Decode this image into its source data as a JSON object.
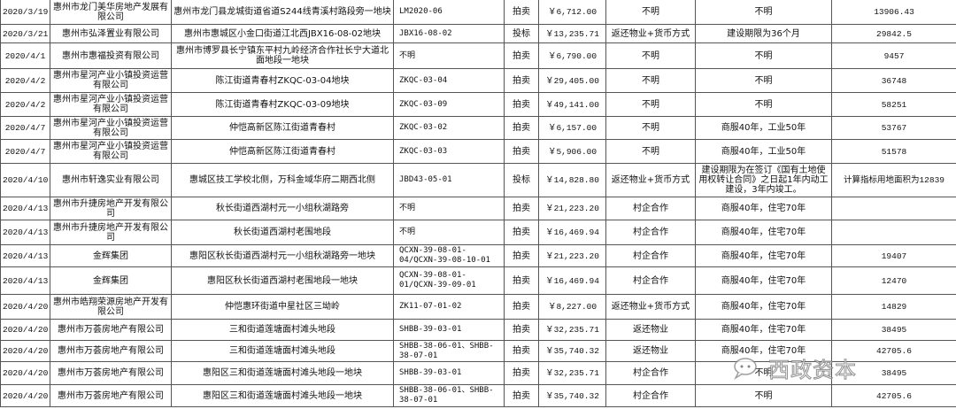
{
  "rows": [
    {
      "date": "2020/3/19",
      "company": "惠州市龙门美华房地产发展有限公司",
      "location": "惠州市龙门县龙城街道省道S244线青溪村路段旁一地块",
      "code": "LM2020-06",
      "method": "拍卖",
      "price": "￥6,712.00",
      "condition": "不明",
      "remarks": "不明",
      "area": "13906.43"
    },
    {
      "date": "2020/3/21",
      "company": "惠州市弘泽置业有限公司",
      "location": "惠州市惠城区小金口街道江北西JBX16-08-02地块",
      "code": "JBX16-08-02",
      "method": "投标",
      "price": "￥13,235.71",
      "condition": "返还物业+货币方式",
      "remarks": "建设期限为36个月",
      "area": "29842.5"
    },
    {
      "date": "2020/4/1",
      "company": "惠州市惠福投资有限公司",
      "location": "惠州市博罗县长宁镇东平村九岭经济合作社长宁大道北面地段一地块",
      "code": "不明",
      "method": "拍卖",
      "price": "￥6,790.00",
      "condition": "不明",
      "remarks": "不明",
      "area": "9457"
    },
    {
      "date": "2020/4/2",
      "company": "惠州市星河产业小镇投资运营有限公司",
      "location": "陈江街道青春村ZKQC-03-04地块",
      "code": "ZKQC-03-04",
      "method": "拍卖",
      "price": "￥29,405.00",
      "condition": "不明",
      "remarks": "不明",
      "area": "36748"
    },
    {
      "date": "2020/4/2",
      "company": "惠州市星河产业小镇投资运营有限公司",
      "location": "陈江街道青春村ZKQC-03-09地块",
      "code": "ZKQC-03-09",
      "method": "拍卖",
      "price": "￥49,141.00",
      "condition": "不明",
      "remarks": "不明",
      "area": "58251"
    },
    {
      "date": "2020/4/7",
      "company": "惠州市星河产业小镇投资运营有限公司",
      "location": "仲恺高新区陈江街道青春村",
      "code": "ZKQC-03-02",
      "method": "拍卖",
      "price": "￥6,157.00",
      "condition": "不明",
      "remarks": "商服40年，工业50年",
      "area": "53767"
    },
    {
      "date": "2020/4/7",
      "company": "惠州市星河产业小镇投资运营有限公司",
      "location": "仲恺高新区陈江街道青春村",
      "code": "ZKQC-03-03",
      "method": "拍卖",
      "price": "￥5,906.00",
      "condition": "不明",
      "remarks": "商服40年，工业50年",
      "area": "51578"
    },
    {
      "date": "2020/4/10",
      "company": "惠州市轩逸实业有限公司",
      "location": "惠城区技工学校北侧，万科金域华府二期西北侧",
      "code": "JBD43-05-01",
      "method": "投标",
      "price": "￥14,828.80",
      "condition": "返还物业+货币方式",
      "remarks": "建设期限为在签订《国有土地使用权转让合同》之日起1年内动工建设，3年内竣工。",
      "area": "计算指标用地面积为12839"
    },
    {
      "date": "2020/4/13",
      "company": "惠州市升捷房地产开发有限公司",
      "location": "秋长街道西湖村元一小组秋湖路旁",
      "code": "不明",
      "method": "拍卖",
      "price": "￥21,223.20",
      "condition": "村企合作",
      "remarks": "商服40年，住宅70年",
      "area": ""
    },
    {
      "date": "2020/4/13",
      "company": "惠州市升捷房地产开发有限公司",
      "location": "秋长街道西湖村老围地段",
      "code": "不明",
      "method": "拍卖",
      "price": "￥16,469.94",
      "condition": "村企合作",
      "remarks": "商服40年，住宅70年",
      "area": ""
    },
    {
      "date": "2020/4/13",
      "company": "金辉集团",
      "location": "惠阳区秋长街道西湖村元一小组秋湖路旁一地块",
      "code": "QCXN-39-08-01-04/QCXN-39-08-10-01",
      "method": "拍卖",
      "price": "￥21,223.20",
      "condition": "村企合作",
      "remarks": "商服40年，住宅70年",
      "area": "19407"
    },
    {
      "date": "2020/4/13",
      "company": "金辉集团",
      "location": "惠阳区秋长街道西湖村老围地段一地块",
      "code": "QCXN-39-08-01-01/QCXN-39-09-01",
      "method": "拍卖",
      "price": "￥16,469.94",
      "condition": "村企合作",
      "remarks": "商服40年，住宅70年",
      "area": "12470"
    },
    {
      "date": "2020/4/20",
      "company": "惠州市皓翔荣源房地产开发有限公司",
      "location": "仲恺惠环街道中星社区三坳岭",
      "code": "ZK11-07-01-02",
      "method": "拍卖",
      "price": "￥8,227.00",
      "condition": "返还物业+货币方式",
      "remarks": "商服40年，住宅70年",
      "area": "14829"
    },
    {
      "date": "2020/4/20",
      "company": "惠州市万荟房地产有限公司",
      "location": "三和街道莲塘面村滩头地段",
      "code": "SHBB-39-03-01",
      "method": "拍卖",
      "price": "￥32,235.71",
      "condition": "返还物业",
      "remarks": "商服40年，住宅70年",
      "area": "38495"
    },
    {
      "date": "2020/4/20",
      "company": "惠州市万荟房地产有限公司",
      "location": "三和街道莲塘面村滩头地段",
      "code": "SHBB-38-06-01、SHBB-38-07-01",
      "method": "拍卖",
      "price": "￥35,740.32",
      "condition": "返还物业",
      "remarks": "商服40年，住宅70年",
      "area": "42705.6"
    },
    {
      "date": "2020/4/20",
      "company": "惠州市万荟房地产有限公司",
      "location": "惠阳区三和街道莲塘面村滩头地段一地块",
      "code": "SHBB-39-03-01",
      "method": "拍卖",
      "price": "￥32,235.71",
      "condition": "村企合作",
      "remarks": "不明",
      "area": "38495"
    },
    {
      "date": "2020/4/20",
      "company": "惠州市万荟房地产有限公司",
      "location": "惠阳区三和街道莲塘面村滩头地段一地块",
      "code": "SHBB-38-06-01、SHBB-38-07-01",
      "method": "拍卖",
      "price": "￥35,740.32",
      "condition": "村企合作",
      "remarks": "不明",
      "area": "42705.6"
    }
  ],
  "watermark": {
    "text": "西政资本",
    "icon": "wechat-icon"
  }
}
